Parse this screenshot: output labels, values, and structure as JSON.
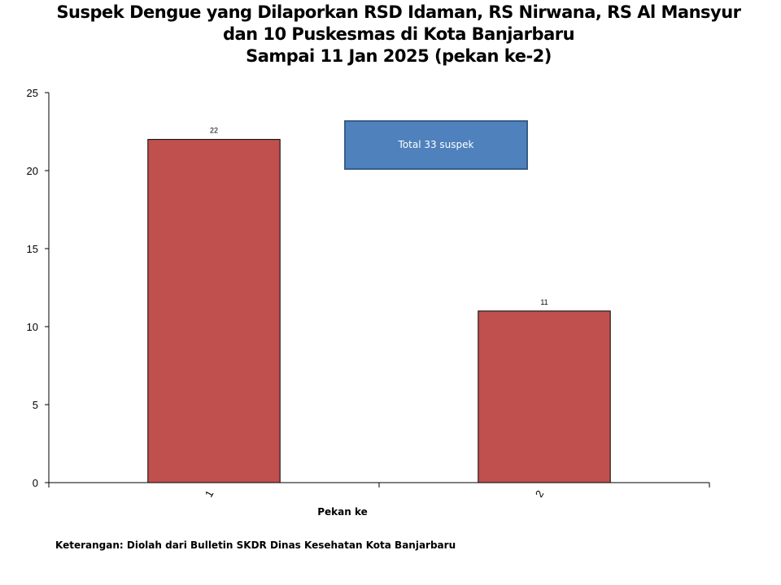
{
  "chart_data": {
    "type": "bar",
    "title": [
      "Suspek Dengue yang Dilaporkan RSD Idaman, RS Nirwana, RS Al Mansyur",
      "dan 10 Puskesmas di Kota Banjarbaru",
      "Sampai 11 Jan 2025 (pekan ke-2)"
    ],
    "categories": [
      "1",
      "2"
    ],
    "values": [
      22,
      11
    ],
    "xlabel": "Pekan ke",
    "ylabel": "",
    "ylim": [
      0,
      25
    ],
    "yticks": [
      0,
      5,
      10,
      15,
      20,
      25
    ],
    "grid": false,
    "bar_color": "#c0504d",
    "annotation": "Total 33  suspek",
    "annotation_color": "#4f81bd"
  },
  "note": "Keterangan: Diolah dari Bulletin SKDR Dinas Kesehatan Kota Banjarbaru"
}
